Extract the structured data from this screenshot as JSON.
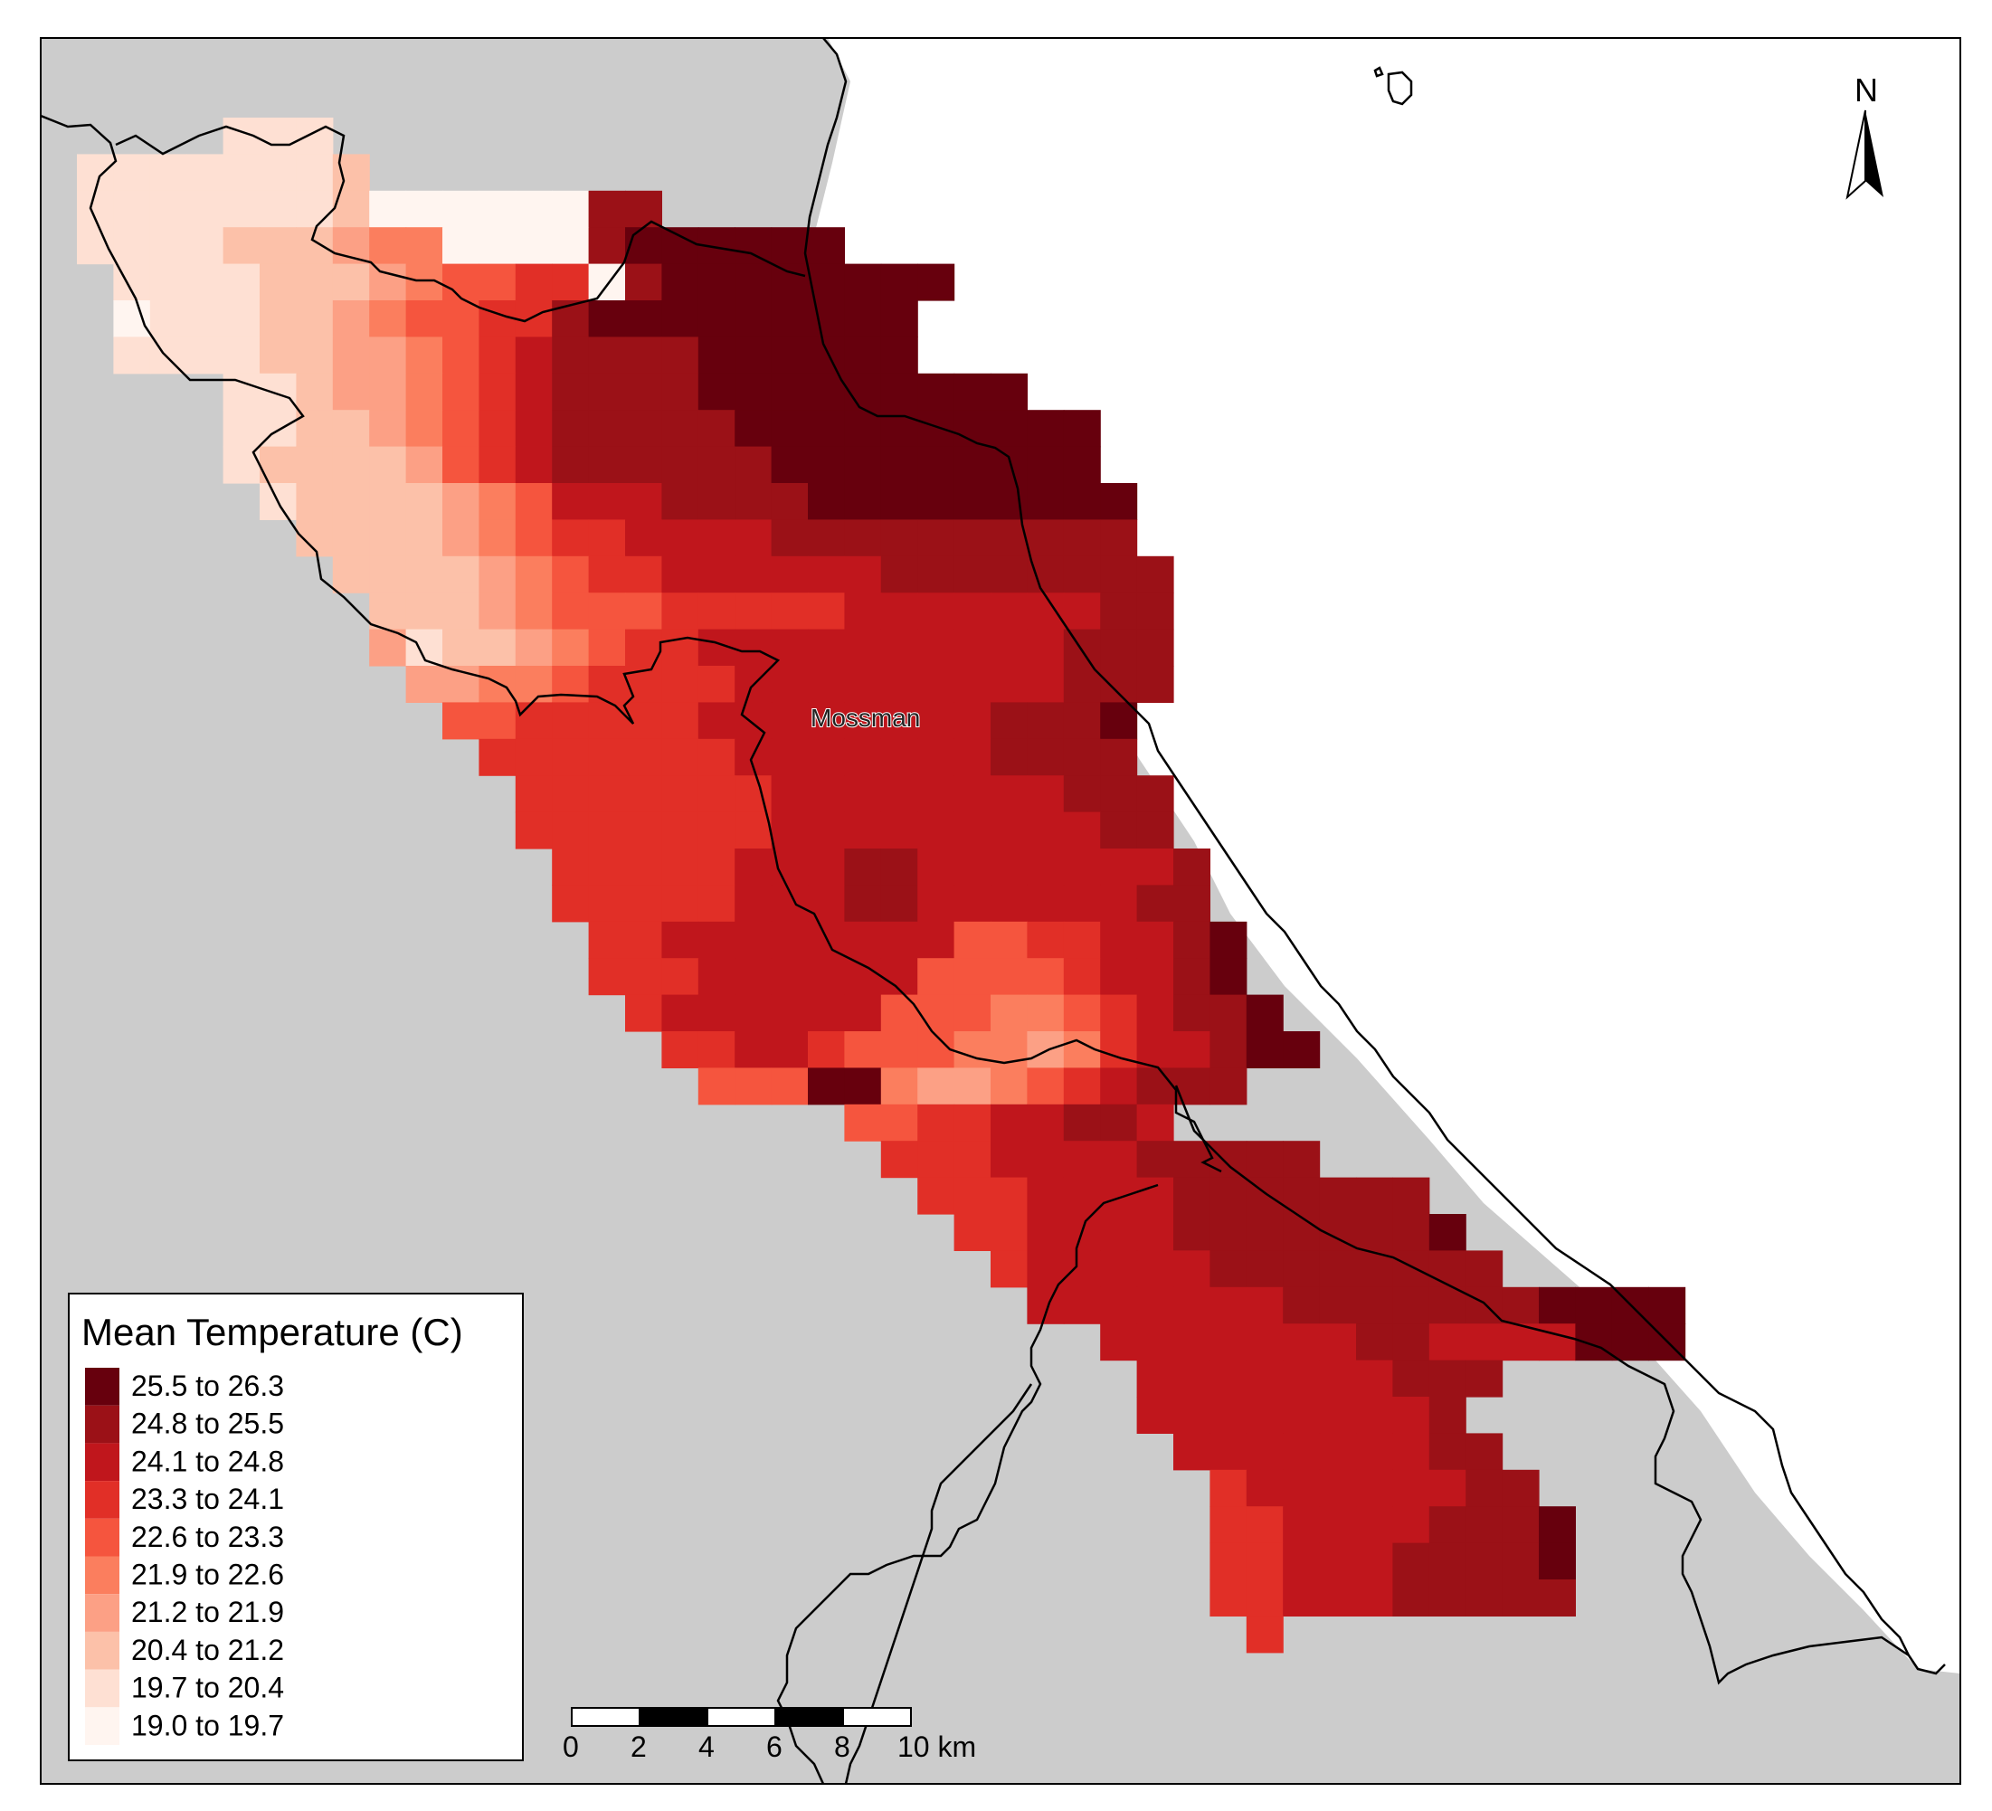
{
  "legend": {
    "title": "Mean Temperature (C)",
    "classes": [
      {
        "label": "25.5 to 26.3",
        "color": "#67000d"
      },
      {
        "label": "24.8 to 25.5",
        "color": "#9b1117"
      },
      {
        "label": "24.1 to 24.8",
        "color": "#c0161c"
      },
      {
        "label": "23.3 to 24.1",
        "color": "#e12f27"
      },
      {
        "label": "22.6 to 23.3",
        "color": "#f5553e"
      },
      {
        "label": "21.9 to 22.6",
        "color": "#fb7e5e"
      },
      {
        "label": "21.2 to 21.9",
        "color": "#fca085"
      },
      {
        "label": "20.4 to 21.2",
        "color": "#fcc1a9"
      },
      {
        "label": "19.7 to 20.4",
        "color": "#fee0d3"
      },
      {
        "label": "19.0 to 19.7",
        "color": "#fff5f0"
      }
    ]
  },
  "place_label": "Mossman",
  "north_arrow": {
    "label": "N"
  },
  "scale_bar": {
    "ticks": [
      "0",
      "2",
      "4",
      "6",
      "8",
      "10 km"
    ]
  },
  "colors": {
    "land": "#cccccc",
    "sea": "#ffffff",
    "boundary": "#000000"
  }
}
